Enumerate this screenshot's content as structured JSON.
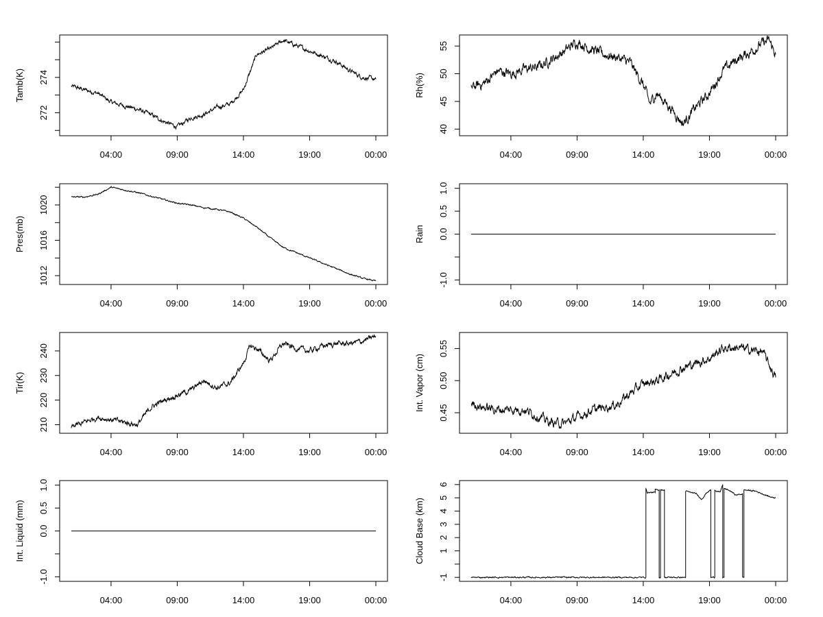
{
  "chart_data": [
    {
      "id": "tamb",
      "type": "line",
      "ylabel": "Tamb(K)",
      "xlim": [
        0,
        24
      ],
      "ylim": [
        270.7,
        276.4
      ],
      "yticks": [
        271,
        272,
        273,
        274,
        275,
        276
      ],
      "ytick_labels": [
        "",
        "272",
        "",
        "274",
        "",
        ""
      ],
      "xticks": [
        3,
        8,
        13,
        18,
        23
      ],
      "xtick_labels": [
        "04:00",
        "09:00",
        "14:00",
        "19:00",
        "00:00"
      ],
      "points": [
        [
          0,
          273.5
        ],
        [
          1,
          273.3
        ],
        [
          2,
          273.1
        ],
        [
          3,
          272.6
        ],
        [
          4,
          272.4
        ],
        [
          5,
          272.2
        ],
        [
          6,
          271.9
        ],
        [
          7,
          271.5
        ],
        [
          8,
          271.2
        ],
        [
          9,
          271.7
        ],
        [
          10,
          271.9
        ],
        [
          11,
          272.3
        ],
        [
          12,
          272.5
        ],
        [
          13,
          273.3
        ],
        [
          14,
          275.3
        ],
        [
          15,
          275.6
        ],
        [
          16,
          276.1
        ],
        [
          17,
          275.8
        ],
        [
          18,
          275.5
        ],
        [
          19,
          275.2
        ],
        [
          20,
          274.9
        ],
        [
          21,
          274.4
        ],
        [
          22,
          274.0
        ],
        [
          23,
          273.9
        ]
      ],
      "noise": 0.12
    },
    {
      "id": "rh",
      "type": "line",
      "ylabel": "Rh(%)",
      "xlim": [
        0,
        24
      ],
      "ylim": [
        38.8,
        57
      ],
      "yticks": [
        40,
        45,
        50,
        55
      ],
      "ytick_labels": [
        "40",
        "45",
        "50",
        "55"
      ],
      "xticks": [
        3,
        8,
        13,
        18,
        23
      ],
      "xtick_labels": [
        "04:00",
        "09:00",
        "14:00",
        "19:00",
        "00:00"
      ],
      "points": [
        [
          0,
          47.5
        ],
        [
          1,
          48.3
        ],
        [
          2,
          50.5
        ],
        [
          3,
          50.0
        ],
        [
          4,
          50.8
        ],
        [
          5,
          51.2
        ],
        [
          6,
          52.5
        ],
        [
          7,
          54.0
        ],
        [
          8,
          55.8
        ],
        [
          9,
          54.5
        ],
        [
          10,
          53.5
        ],
        [
          11,
          53.0
        ],
        [
          12,
          52.0
        ],
        [
          13,
          48.0
        ],
        [
          13.5,
          44.5
        ],
        [
          14,
          46.5
        ],
        [
          15,
          44.0
        ],
        [
          16,
          41.0
        ],
        [
          17,
          44.0
        ],
        [
          18,
          46.5
        ],
        [
          19,
          50.5
        ],
        [
          20,
          52.5
        ],
        [
          21,
          53.8
        ],
        [
          22,
          55.5
        ],
        [
          22.5,
          56.0
        ],
        [
          23,
          53.5
        ]
      ],
      "noise": 0.9
    },
    {
      "id": "pres",
      "type": "line",
      "ylabel": "Pres(mb)",
      "xlim": [
        0,
        24
      ],
      "ylim": [
        1011,
        1022.4
      ],
      "yticks": [
        1012,
        1014,
        1016,
        1018,
        1020,
        1022
      ],
      "ytick_labels": [
        "1012",
        "",
        "1016",
        "",
        "1020",
        ""
      ],
      "xticks": [
        3,
        8,
        13,
        18,
        23
      ],
      "xtick_labels": [
        "04:00",
        "09:00",
        "14:00",
        "19:00",
        "00:00"
      ],
      "points": [
        [
          0,
          1020.9
        ],
        [
          1,
          1020.9
        ],
        [
          2,
          1021.2
        ],
        [
          3,
          1022.0
        ],
        [
          4,
          1021.7
        ],
        [
          5,
          1021.4
        ],
        [
          6,
          1021.0
        ],
        [
          7,
          1020.6
        ],
        [
          8,
          1020.2
        ],
        [
          9,
          1020.0
        ],
        [
          10,
          1019.7
        ],
        [
          11,
          1019.5
        ],
        [
          12,
          1019.2
        ],
        [
          13,
          1018.5
        ],
        [
          14,
          1017.5
        ],
        [
          15,
          1016.3
        ],
        [
          16,
          1015.2
        ],
        [
          17,
          1014.6
        ],
        [
          18,
          1014.0
        ],
        [
          19,
          1013.4
        ],
        [
          20,
          1012.8
        ],
        [
          21,
          1012.2
        ],
        [
          22,
          1011.7
        ],
        [
          23,
          1011.4
        ]
      ],
      "noise": 0.08
    },
    {
      "id": "rain",
      "type": "line",
      "ylabel": "Rain",
      "xlim": [
        0,
        24
      ],
      "ylim": [
        -1.1,
        1.1
      ],
      "yticks": [
        -1.0,
        -0.5,
        0.0,
        0.5,
        1.0
      ],
      "ytick_labels": [
        "-1.0",
        "",
        "0.0",
        "0.5",
        "1.0"
      ],
      "xticks": [
        3,
        8,
        13,
        18,
        23
      ],
      "xtick_labels": [
        "04:00",
        "09:00",
        "14:00",
        "19:00",
        "00:00"
      ],
      "points": [
        [
          0,
          0
        ],
        [
          23,
          0
        ]
      ],
      "noise": 0
    },
    {
      "id": "tir",
      "type": "line",
      "ylabel": "Tir(K)",
      "xlim": [
        0,
        24
      ],
      "ylim": [
        206.5,
        247.5
      ],
      "yticks": [
        210,
        220,
        230,
        240
      ],
      "ytick_labels": [
        "210",
        "220",
        "230",
        "240"
      ],
      "xticks": [
        3,
        8,
        13,
        18,
        23
      ],
      "xtick_labels": [
        "04:00",
        "09:00",
        "14:00",
        "19:00",
        "00:00"
      ],
      "points": [
        [
          0,
          209
        ],
        [
          1,
          211
        ],
        [
          2,
          213
        ],
        [
          3,
          212
        ],
        [
          4,
          211
        ],
        [
          5,
          210
        ],
        [
          6,
          217
        ],
        [
          7,
          220
        ],
        [
          8,
          222
        ],
        [
          9,
          224
        ],
        [
          10,
          228
        ],
        [
          11,
          225
        ],
        [
          12,
          227
        ],
        [
          13,
          235
        ],
        [
          13.5,
          242
        ],
        [
          14,
          241
        ],
        [
          15,
          236
        ],
        [
          16,
          243
        ],
        [
          17,
          241
        ],
        [
          18,
          240
        ],
        [
          19,
          242
        ],
        [
          20,
          243
        ],
        [
          21,
          243
        ],
        [
          22,
          244
        ],
        [
          23,
          246
        ]
      ],
      "noise": 1.1
    },
    {
      "id": "vapor",
      "type": "line",
      "ylabel": "Int. Vapor (cm)",
      "xlim": [
        0,
        24
      ],
      "ylim": [
        0.418,
        0.575
      ],
      "yticks": [
        0.45,
        0.5,
        0.55
      ],
      "ytick_labels": [
        "0.45",
        "0.50",
        "0.55"
      ],
      "xticks": [
        3,
        8,
        13,
        18,
        23
      ],
      "xtick_labels": [
        "04:00",
        "09:00",
        "14:00",
        "19:00",
        "00:00"
      ],
      "points": [
        [
          0,
          0.465
        ],
        [
          1,
          0.458
        ],
        [
          2,
          0.455
        ],
        [
          3,
          0.455
        ],
        [
          4,
          0.455
        ],
        [
          5,
          0.445
        ],
        [
          6,
          0.435
        ],
        [
          7,
          0.433
        ],
        [
          8,
          0.443
        ],
        [
          9,
          0.453
        ],
        [
          10,
          0.458
        ],
        [
          11,
          0.463
        ],
        [
          12,
          0.48
        ],
        [
          13,
          0.495
        ],
        [
          14,
          0.5
        ],
        [
          15,
          0.51
        ],
        [
          16,
          0.52
        ],
        [
          17,
          0.527
        ],
        [
          18,
          0.535
        ],
        [
          19,
          0.55
        ],
        [
          20,
          0.552
        ],
        [
          21,
          0.548
        ],
        [
          22,
          0.545
        ],
        [
          23,
          0.505
        ]
      ],
      "noise": 0.007
    },
    {
      "id": "liquid",
      "type": "line",
      "ylabel": "Int. Liquid (mm)",
      "xlim": [
        0,
        24
      ],
      "ylim": [
        -1.1,
        1.1
      ],
      "yticks": [
        -1.0,
        -0.5,
        0.0,
        0.5,
        1.0
      ],
      "ytick_labels": [
        "-1.0",
        "",
        "0.0",
        "0.5",
        "1.0"
      ],
      "xticks": [
        3,
        8,
        13,
        18,
        23
      ],
      "xtick_labels": [
        "04:00",
        "09:00",
        "14:00",
        "19:00",
        "00:00"
      ],
      "points": [
        [
          0,
          0
        ],
        [
          23,
          0
        ]
      ],
      "noise": 0
    },
    {
      "id": "cloud",
      "type": "line",
      "ylabel": "Cloud Base (km)",
      "xlim": [
        0,
        24
      ],
      "ylim": [
        -1.3,
        6.3
      ],
      "yticks": [
        -1,
        0,
        1,
        2,
        3,
        4,
        5,
        6
      ],
      "ytick_labels": [
        "-1",
        "",
        "1",
        "2",
        "3",
        "4",
        "5",
        "6"
      ],
      "xticks": [
        3,
        8,
        13,
        18,
        23
      ],
      "xtick_labels": [
        "04:00",
        "09:00",
        "14:00",
        "19:00",
        "00:00"
      ],
      "points": [
        [
          0,
          -1
        ],
        [
          13.2,
          -1
        ],
        [
          13.2,
          5.7
        ],
        [
          13.3,
          5.4
        ],
        [
          13.9,
          5.4
        ],
        [
          13.9,
          5.6
        ],
        [
          14.2,
          5.6
        ],
        [
          14.2,
          -1
        ],
        [
          14.3,
          -1
        ],
        [
          14.3,
          5.6
        ],
        [
          14.6,
          5.6
        ],
        [
          14.6,
          -1
        ],
        [
          14.8,
          -1
        ],
        [
          14.8,
          -1
        ],
        [
          16.2,
          -1
        ],
        [
          16.2,
          5.5
        ],
        [
          17.0,
          5.3
        ],
        [
          17.4,
          4.9
        ],
        [
          17.8,
          5.4
        ],
        [
          18.1,
          5.6
        ],
        [
          18.1,
          -1
        ],
        [
          18.4,
          -1
        ],
        [
          18.4,
          5.6
        ],
        [
          18.8,
          5.4
        ],
        [
          19.0,
          6.0
        ],
        [
          19.0,
          -1
        ],
        [
          19.1,
          -1
        ],
        [
          19.1,
          5.7
        ],
        [
          19.6,
          5.5
        ],
        [
          20.0,
          5.2
        ],
        [
          20.5,
          5.3
        ],
        [
          20.5,
          -1
        ],
        [
          20.6,
          -1
        ],
        [
          20.6,
          5.6
        ],
        [
          21.5,
          5.5
        ],
        [
          22.0,
          5.3
        ],
        [
          22.5,
          5.1
        ],
        [
          23,
          5.0
        ]
      ],
      "noise": 0.05
    }
  ]
}
